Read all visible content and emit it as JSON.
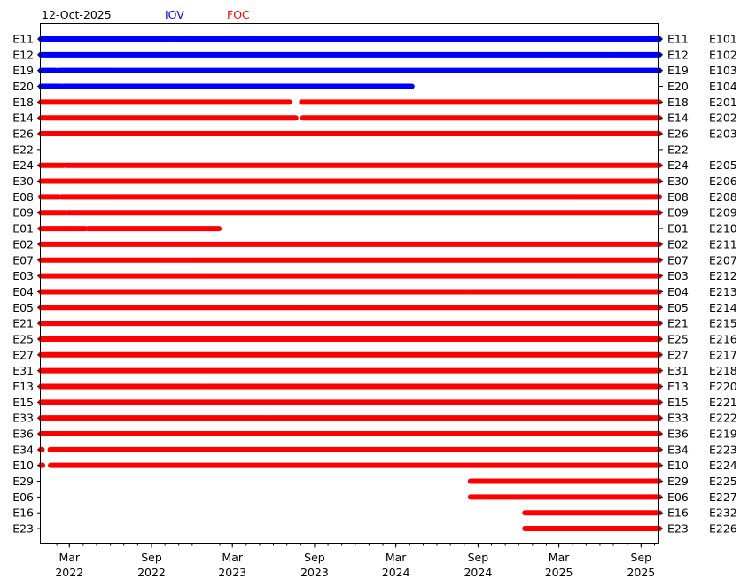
{
  "chart_data": {
    "type": "timeline",
    "date_label": "12-Oct-2025",
    "legend": [
      {
        "label": "IOV",
        "color": "#0000ff"
      },
      {
        "label": "FOC",
        "color": "#ff0000"
      }
    ],
    "x_range": [
      "2021-12-27",
      "2025-10-12"
    ],
    "x_ticks": [
      {
        "date": "2022-03-01",
        "month": "Mar",
        "year": "2022"
      },
      {
        "date": "2022-09-01",
        "month": "Sep",
        "year": "2022"
      },
      {
        "date": "2023-03-01",
        "month": "Mar",
        "year": "2023"
      },
      {
        "date": "2023-09-01",
        "month": "Sep",
        "year": "2023"
      },
      {
        "date": "2024-03-01",
        "month": "Mar",
        "year": "2024"
      },
      {
        "date": "2024-09-01",
        "month": "Sep",
        "year": "2024"
      },
      {
        "date": "2025-03-01",
        "month": "Mar",
        "year": "2025"
      },
      {
        "date": "2025-09-01",
        "month": "Sep",
        "year": "2025"
      }
    ],
    "rows": [
      {
        "sv": "E11",
        "id": "E101",
        "group": "IOV",
        "segments": [
          [
            "2021-12-27",
            "2022-10-19"
          ],
          [
            "2022-10-21",
            "2025-10-12"
          ]
        ]
      },
      {
        "sv": "E12",
        "id": "E102",
        "group": "IOV",
        "segments": [
          [
            "2021-12-27",
            "2025-02-08"
          ],
          [
            "2025-02-10",
            "2025-06-22"
          ],
          [
            "2025-06-24",
            "2025-10-12"
          ]
        ]
      },
      {
        "sv": "E19",
        "id": "E103",
        "group": "IOV",
        "segments": [
          [
            "2021-12-27",
            "2022-01-30"
          ],
          [
            "2022-02-06",
            "2025-10-12"
          ]
        ]
      },
      {
        "sv": "E20",
        "id": "E104",
        "group": "IOV",
        "segments": [
          [
            "2021-12-27",
            "2022-02-10"
          ],
          [
            "2022-02-15",
            "2024-04-06"
          ]
        ]
      },
      {
        "sv": "E18",
        "id": "E201",
        "group": "FOC",
        "segments": [
          [
            "2021-12-27",
            "2023-07-07"
          ],
          [
            "2023-08-03",
            "2025-10-12"
          ]
        ]
      },
      {
        "sv": "E14",
        "id": "E202",
        "group": "FOC",
        "segments": [
          [
            "2021-12-27",
            "2023-07-21"
          ],
          [
            "2023-08-06",
            "2025-10-12"
          ]
        ]
      },
      {
        "sv": "E26",
        "id": "E203",
        "group": "FOC",
        "segments": [
          [
            "2021-12-27",
            "2025-10-12"
          ]
        ]
      },
      {
        "sv": "E22",
        "id": "",
        "group": "FOC",
        "segments": []
      },
      {
        "sv": "E24",
        "id": "E205",
        "group": "FOC",
        "segments": [
          [
            "2021-12-27",
            "2022-02-16"
          ],
          [
            "2022-02-21",
            "2025-10-12"
          ]
        ]
      },
      {
        "sv": "E30",
        "id": "E206",
        "group": "FOC",
        "segments": [
          [
            "2021-12-27",
            "2025-10-12"
          ]
        ]
      },
      {
        "sv": "E08",
        "id": "E208",
        "group": "FOC",
        "segments": [
          [
            "2021-12-27",
            "2022-02-05"
          ],
          [
            "2022-02-11",
            "2025-10-12"
          ]
        ]
      },
      {
        "sv": "E09",
        "id": "E209",
        "group": "FOC",
        "segments": [
          [
            "2021-12-27",
            "2022-02-21"
          ],
          [
            "2022-02-26",
            "2025-10-12"
          ]
        ]
      },
      {
        "sv": "E01",
        "id": "E210",
        "group": "FOC",
        "segments": [
          [
            "2021-12-27",
            "2022-04-06"
          ],
          [
            "2022-04-12",
            "2022-12-29"
          ],
          [
            "2023-01-02",
            "2023-01-30"
          ]
        ]
      },
      {
        "sv": "E02",
        "id": "E211",
        "group": "FOC",
        "segments": [
          [
            "2021-12-27",
            "2022-10-19"
          ],
          [
            "2022-10-21",
            "2025-10-12"
          ]
        ]
      },
      {
        "sv": "E07",
        "id": "E207",
        "group": "FOC",
        "segments": [
          [
            "2021-12-27",
            "2022-10-25"
          ],
          [
            "2022-10-28",
            "2025-10-12"
          ]
        ]
      },
      {
        "sv": "E03",
        "id": "E212",
        "group": "FOC",
        "segments": [
          [
            "2021-12-27",
            "2023-02-03"
          ],
          [
            "2023-02-06",
            "2025-10-12"
          ]
        ]
      },
      {
        "sv": "E04",
        "id": "E213",
        "group": "FOC",
        "segments": [
          [
            "2021-12-27",
            "2024-08-15"
          ],
          [
            "2024-08-18",
            "2025-10-12"
          ]
        ]
      },
      {
        "sv": "E05",
        "id": "E214",
        "group": "FOC",
        "segments": [
          [
            "2021-12-27",
            "2023-07-23"
          ],
          [
            "2023-07-26",
            "2025-10-12"
          ]
        ]
      },
      {
        "sv": "E21",
        "id": "E215",
        "group": "FOC",
        "segments": [
          [
            "2021-12-27",
            "2025-10-12"
          ]
        ]
      },
      {
        "sv": "E25",
        "id": "E216",
        "group": "FOC",
        "segments": [
          [
            "2021-12-27",
            "2025-10-12"
          ]
        ]
      },
      {
        "sv": "E27",
        "id": "E217",
        "group": "FOC",
        "segments": [
          [
            "2021-12-27",
            "2025-10-12"
          ]
        ]
      },
      {
        "sv": "E31",
        "id": "E218",
        "group": "FOC",
        "segments": [
          [
            "2021-12-27",
            "2025-10-12"
          ]
        ]
      },
      {
        "sv": "E13",
        "id": "E220",
        "group": "FOC",
        "segments": [
          [
            "2021-12-27",
            "2022-12-29"
          ],
          [
            "2023-01-02",
            "2025-10-12"
          ]
        ]
      },
      {
        "sv": "E15",
        "id": "E221",
        "group": "FOC",
        "segments": [
          [
            "2021-12-27",
            "2025-10-12"
          ]
        ]
      },
      {
        "sv": "E33",
        "id": "E222",
        "group": "FOC",
        "segments": [
          [
            "2021-12-27",
            "2023-05-18"
          ],
          [
            "2023-05-21",
            "2025-10-12"
          ]
        ]
      },
      {
        "sv": "E36",
        "id": "E219",
        "group": "FOC",
        "segments": [
          [
            "2021-12-27",
            "2025-10-12"
          ]
        ]
      },
      {
        "sv": "E34",
        "id": "E223",
        "group": "FOC",
        "segments": [
          [
            "2021-12-27",
            "2021-12-30"
          ],
          [
            "2022-01-17",
            "2025-10-12"
          ]
        ]
      },
      {
        "sv": "E10",
        "id": "E224",
        "group": "FOC",
        "segments": [
          [
            "2021-12-27",
            "2021-12-31"
          ],
          [
            "2022-01-18",
            "2025-10-12"
          ]
        ]
      },
      {
        "sv": "E29",
        "id": "E225",
        "group": "FOC",
        "segments": [
          [
            "2024-08-15",
            "2025-10-12"
          ]
        ]
      },
      {
        "sv": "E06",
        "id": "E227",
        "group": "FOC",
        "segments": [
          [
            "2024-08-15",
            "2025-10-12"
          ]
        ]
      },
      {
        "sv": "E16",
        "id": "E232",
        "group": "FOC",
        "segments": [
          [
            "2024-12-15",
            "2025-10-12"
          ]
        ]
      },
      {
        "sv": "E23",
        "id": "E226",
        "group": "FOC",
        "segments": [
          [
            "2024-12-15",
            "2025-10-12"
          ]
        ]
      }
    ]
  }
}
